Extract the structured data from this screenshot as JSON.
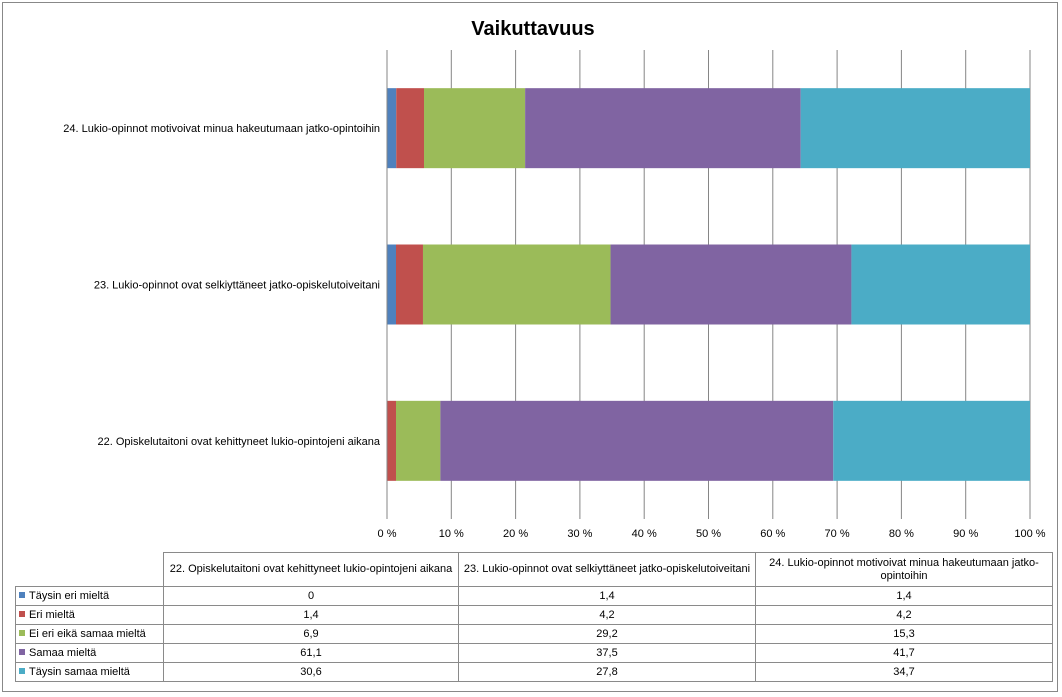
{
  "chart_data": {
    "type": "bar",
    "orientation": "horizontal",
    "stacked": "100%",
    "title": "Vaikuttavuus",
    "categories": [
      "22. Opiskelutaitoni ovat kehittyneet lukio-opintojeni aikana",
      "23. Lukio-opinnot ovat selkiyttäneet jatko-opiskelutoiveitani",
      "24. Lukio-opinnot motivoivat minua hakeutumaan jatko-opintoihin"
    ],
    "table_headers": [
      "22. Opiskelutaitoni ovat kehittyneet lukio-opintojeni aikana",
      "23. Lukio-opinnot ovat selkiyttäneet jatko-opiskelutoiveitani",
      "24. Lukio-opinnot motivoivat minua hakeutumaan jatko-opintoihin"
    ],
    "series": [
      {
        "name": "Täysin eri mieltä",
        "color": "#4f81bd",
        "values": [
          0,
          1.4,
          1.4
        ],
        "labels": [
          "0",
          "1,4",
          "1,4"
        ]
      },
      {
        "name": "Eri mieltä",
        "color": "#c0504d",
        "values": [
          1.4,
          4.2,
          4.2
        ],
        "labels": [
          "1,4",
          "4,2",
          "4,2"
        ]
      },
      {
        "name": "Ei eri eikä samaa mieltä",
        "color": "#9bbb59",
        "values": [
          6.9,
          29.2,
          15.3
        ],
        "labels": [
          "6,9",
          "29,2",
          "15,3"
        ]
      },
      {
        "name": "Samaa mieltä",
        "color": "#8064a2",
        "values": [
          61.1,
          37.5,
          41.7
        ],
        "labels": [
          "61,1",
          "37,5",
          "41,7"
        ]
      },
      {
        "name": "Täysin samaa mieltä",
        "color": "#4bacc6",
        "values": [
          30.6,
          27.8,
          34.7
        ],
        "labels": [
          "30,6",
          "27,8",
          "34,7"
        ]
      }
    ],
    "xlim": [
      0,
      100
    ],
    "xticks": [
      "0 %",
      "10 %",
      "20 %",
      "30 %",
      "40 %",
      "50 %",
      "60 %",
      "70 %",
      "80 %",
      "90 %",
      "100 %"
    ],
    "grid": true,
    "legend": "data-table-below"
  }
}
